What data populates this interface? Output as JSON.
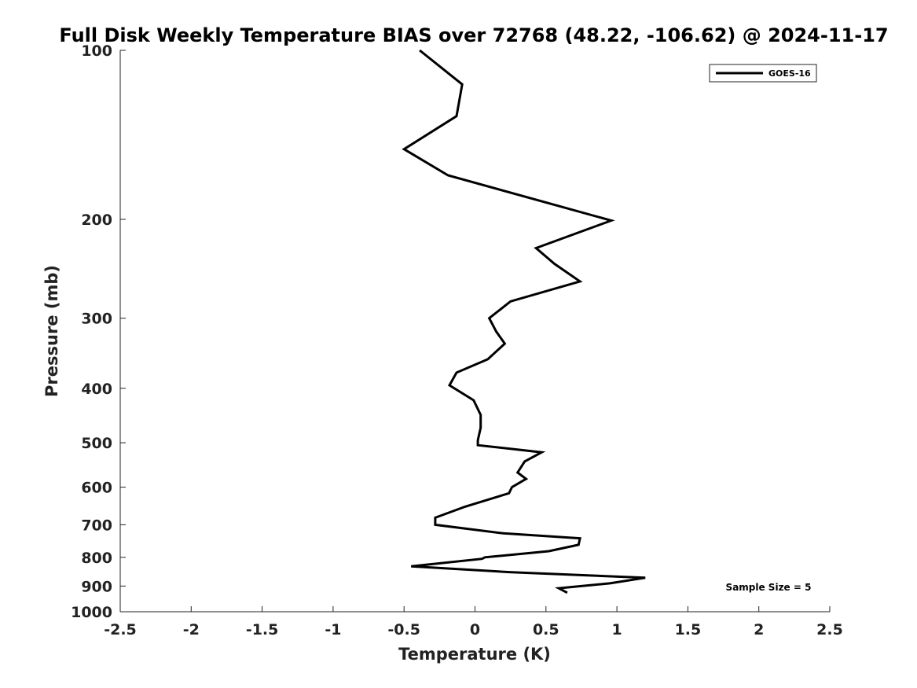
{
  "chart_data": {
    "type": "line",
    "title": "Full Disk Weekly Temperature BIAS over 72768 (48.22, -106.62) @ 2024-11-17",
    "xlabel": "Temperature (K)",
    "ylabel": "Pressure (mb)",
    "xlim": [
      -2.5,
      2.5
    ],
    "ylim": [
      100,
      1000
    ],
    "y_scale": "log",
    "y_reversed": true,
    "x_ticks": [
      "-2.5",
      "-2",
      "-1.5",
      "-1",
      "-0.5",
      "0",
      "0.5",
      "1",
      "1.5",
      "2",
      "2.5"
    ],
    "y_ticks": [
      "100",
      "200",
      "300",
      "400",
      "500",
      "600",
      "700",
      "800",
      "900",
      "1000"
    ],
    "grid": false,
    "legend": {
      "position": "top-right",
      "entries": [
        "GOES-16"
      ]
    },
    "annotation": "Sample Size = 5",
    "series": [
      {
        "name": "GOES-16",
        "color": "#000000",
        "x": [
          -0.39,
          -0.09,
          -0.13,
          -0.5,
          -0.19,
          0.96,
          0.43,
          0.56,
          0.74,
          0.25,
          0.1,
          0.15,
          0.21,
          0.09,
          -0.13,
          -0.18,
          -0.01,
          0.04,
          0.04,
          0.02,
          0.02,
          0.47,
          0.35,
          0.3,
          0.36,
          0.26,
          0.24,
          -0.07,
          -0.28,
          -0.28,
          0.2,
          0.74,
          0.73,
          0.52,
          0.07,
          0.05,
          -0.45,
          0.24,
          1.2,
          0.95,
          0.59,
          0.65
        ],
        "y": [
          100,
          115,
          131,
          150,
          167,
          201,
          225,
          240,
          258,
          280,
          300,
          317,
          333,
          355,
          375,
          395,
          420,
          446,
          470,
          495,
          505,
          520,
          540,
          565,
          580,
          600,
          615,
          650,
          680,
          700,
          725,
          740,
          760,
          780,
          800,
          805,
          830,
          850,
          870,
          890,
          908,
          925
        ]
      }
    ]
  }
}
